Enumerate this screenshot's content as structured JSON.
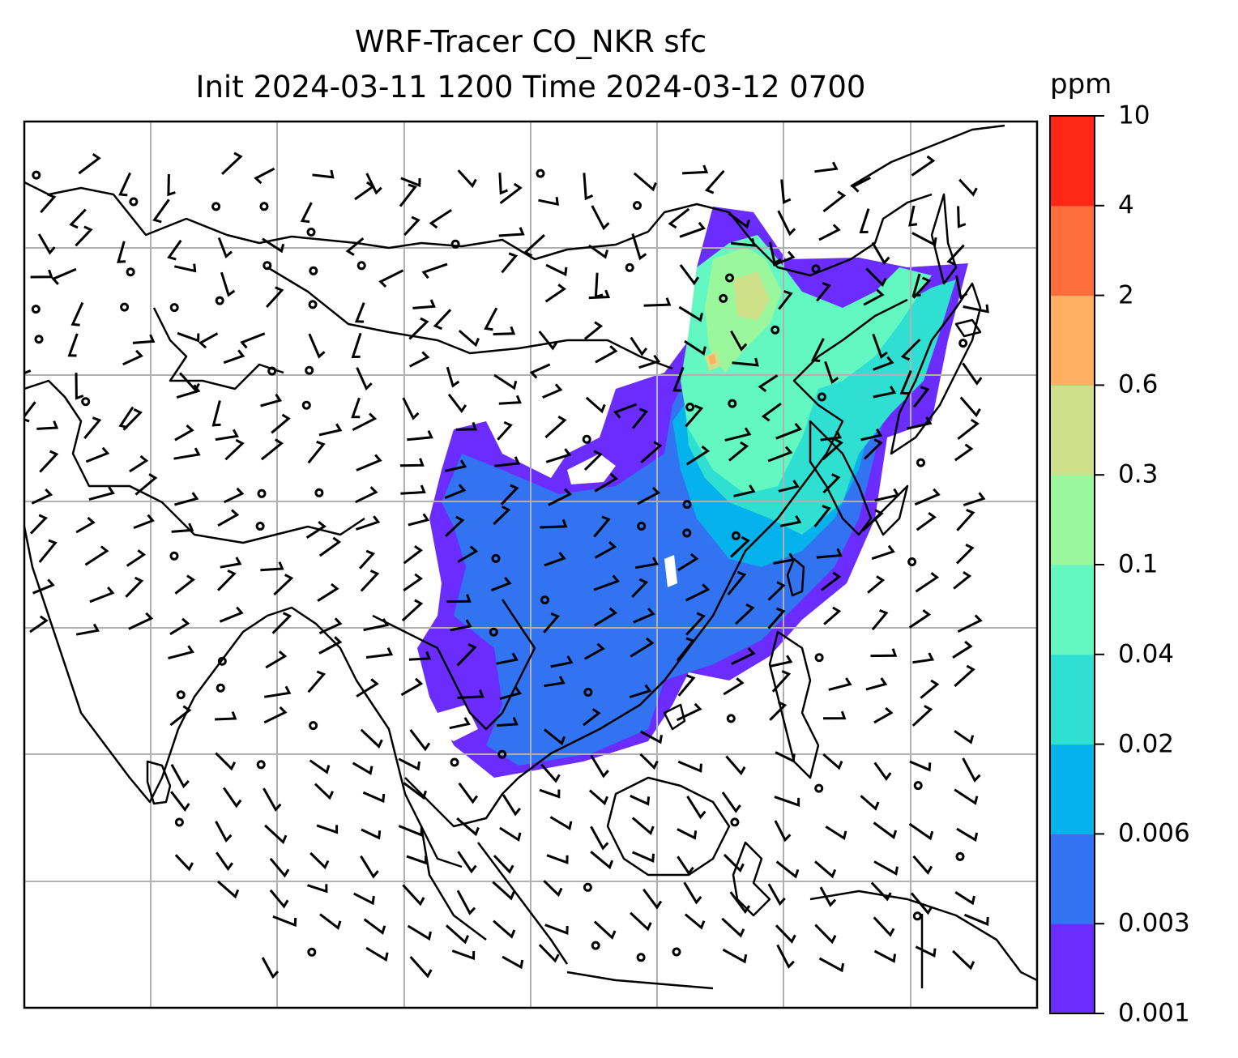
{
  "title": {
    "line1": "WRF-Tracer CO_NKR sfc",
    "line2": "Init 2024-03-11 1200 Time 2024-03-12 0700"
  },
  "colorbar": {
    "unit": "ppm",
    "levels": [
      "0.001",
      "0.003",
      "0.006",
      "0.02",
      "0.04",
      "0.1",
      "0.3",
      "0.6",
      "2",
      "4",
      "10"
    ],
    "colors": [
      "#6a2cff",
      "#3273f2",
      "#06b2ec",
      "#2fe0d2",
      "#63f7c2",
      "#9bf79c",
      "#cee08a",
      "#ffb062",
      "#ff6e3a",
      "#ff2716"
    ]
  },
  "map": {
    "field": "CO_NKR surface tracer concentration",
    "overlays": [
      "coastlines",
      "country-borders",
      "wind-barbs",
      "lat-lon-gridlines"
    ],
    "gridline_color": "#b0b0b0"
  }
}
